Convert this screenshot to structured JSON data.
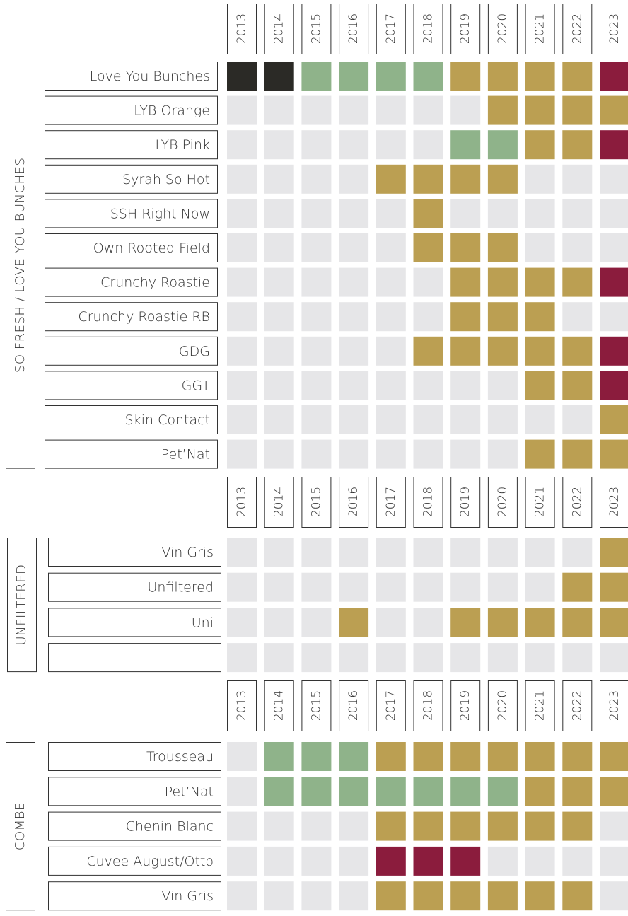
{
  "sections": [
    {
      "title": "SO FRESH / LOVE YOU BUNCHES",
      "years": [
        "2013",
        "2014",
        "2015",
        "2016",
        "2017",
        "2018",
        "2019",
        "2020",
        "2021",
        "2022",
        "2023"
      ],
      "rows": [
        {
          "label": "Love You Bunches",
          "cells": [
            "#2b2a26",
            "#2b2a26",
            "#8fb38a",
            "#8fb38a",
            "#8fb38a",
            "#8fb38a",
            "#bb9f52",
            "#bb9f52",
            "#bb9f52",
            "#bb9f52",
            "#8b1c3d"
          ]
        },
        {
          "label": "LYB Orange",
          "cells": [
            "#e6e6e8",
            "#e6e6e8",
            "#e6e6e8",
            "#e6e6e8",
            "#e6e6e8",
            "#e6e6e8",
            "#e6e6e8",
            "#bb9f52",
            "#bb9f52",
            "#bb9f52",
            "#bb9f52"
          ]
        },
        {
          "label": "LYB Pink",
          "cells": [
            "#e6e6e8",
            "#e6e6e8",
            "#e6e6e8",
            "#e6e6e8",
            "#e6e6e8",
            "#e6e6e8",
            "#8fb38a",
            "#8fb38a",
            "#bb9f52",
            "#bb9f52",
            "#8b1c3d"
          ]
        },
        {
          "label": "Syrah So Hot",
          "cells": [
            "#e6e6e8",
            "#e6e6e8",
            "#e6e6e8",
            "#e6e6e8",
            "#bb9f52",
            "#bb9f52",
            "#bb9f52",
            "#bb9f52",
            "#e6e6e8",
            "#e6e6e8",
            "#e6e6e8"
          ]
        },
        {
          "label": "SSH Right Now",
          "cells": [
            "#e6e6e8",
            "#e6e6e8",
            "#e6e6e8",
            "#e6e6e8",
            "#e6e6e8",
            "#bb9f52",
            "#e6e6e8",
            "#e6e6e8",
            "#e6e6e8",
            "#e6e6e8",
            "#e6e6e8"
          ]
        },
        {
          "label": "Own Rooted Field",
          "cells": [
            "#e6e6e8",
            "#e6e6e8",
            "#e6e6e8",
            "#e6e6e8",
            "#e6e6e8",
            "#bb9f52",
            "#bb9f52",
            "#bb9f52",
            "#e6e6e8",
            "#e6e6e8",
            "#e6e6e8"
          ]
        },
        {
          "label": "Crunchy Roastie",
          "cells": [
            "#e6e6e8",
            "#e6e6e8",
            "#e6e6e8",
            "#e6e6e8",
            "#e6e6e8",
            "#e6e6e8",
            "#bb9f52",
            "#bb9f52",
            "#bb9f52",
            "#bb9f52",
            "#8b1c3d"
          ]
        },
        {
          "label": "Crunchy Roastie RB",
          "cells": [
            "#e6e6e8",
            "#e6e6e8",
            "#e6e6e8",
            "#e6e6e8",
            "#e6e6e8",
            "#e6e6e8",
            "#bb9f52",
            "#bb9f52",
            "#bb9f52",
            "#e6e6e8",
            "#e6e6e8"
          ]
        },
        {
          "label": "GDG",
          "cells": [
            "#e6e6e8",
            "#e6e6e8",
            "#e6e6e8",
            "#e6e6e8",
            "#e6e6e8",
            "#bb9f52",
            "#bb9f52",
            "#bb9f52",
            "#bb9f52",
            "#bb9f52",
            "#8b1c3d"
          ]
        },
        {
          "label": "GGT",
          "cells": [
            "#e6e6e8",
            "#e6e6e8",
            "#e6e6e8",
            "#e6e6e8",
            "#e6e6e8",
            "#e6e6e8",
            "#e6e6e8",
            "#e6e6e8",
            "#bb9f52",
            "#bb9f52",
            "#8b1c3d"
          ]
        },
        {
          "label": "Skin Contact",
          "cells": [
            "#e6e6e8",
            "#e6e6e8",
            "#e6e6e8",
            "#e6e6e8",
            "#e6e6e8",
            "#e6e6e8",
            "#e6e6e8",
            "#e6e6e8",
            "#e6e6e8",
            "#e6e6e8",
            "#bb9f52"
          ]
        },
        {
          "label": "Pet’Nat",
          "cells": [
            "#e6e6e8",
            "#e6e6e8",
            "#e6e6e8",
            "#e6e6e8",
            "#e6e6e8",
            "#e6e6e8",
            "#e6e6e8",
            "#e6e6e8",
            "#bb9f52",
            "#bb9f52",
            "#bb9f52"
          ]
        }
      ]
    },
    {
      "title": "UNFILTERED",
      "years": [
        "2013",
        "2014",
        "2015",
        "2016",
        "2017",
        "2018",
        "2019",
        "2020",
        "2021",
        "2022",
        "2023"
      ],
      "rows": [
        {
          "label": "Vin Gris",
          "cells": [
            "#e6e6e8",
            "#e6e6e8",
            "#e6e6e8",
            "#e6e6e8",
            "#e6e6e8",
            "#e6e6e8",
            "#e6e6e8",
            "#e6e6e8",
            "#e6e6e8",
            "#e6e6e8",
            "#bb9f52"
          ]
        },
        {
          "label": "Unfiltered",
          "cells": [
            "#e6e6e8",
            "#e6e6e8",
            "#e6e6e8",
            "#e6e6e8",
            "#e6e6e8",
            "#e6e6e8",
            "#e6e6e8",
            "#e6e6e8",
            "#e6e6e8",
            "#bb9f52",
            "#bb9f52"
          ]
        },
        {
          "label": "Uni",
          "cells": [
            "#e6e6e8",
            "#e6e6e8",
            "#e6e6e8",
            "#bb9f52",
            "#e6e6e8",
            "#e6e6e8",
            "#bb9f52",
            "#bb9f52",
            "#bb9f52",
            "#bb9f52",
            "#bb9f52"
          ]
        },
        {
          "cells": [
            "#e6e6e8",
            "#e6e6e8",
            "#e6e6e8",
            "#e6e6e8",
            "#e6e6e8",
            "#e6e6e8",
            "#e6e6e8",
            "#e6e6e8",
            "#e6e6e8",
            "#e6e6e8",
            "#e6e6e8"
          ]
        }
      ]
    },
    {
      "title": "COMBE",
      "years": [
        "2013",
        "2014",
        "2015",
        "2016",
        "2017",
        "2018",
        "2019",
        "2020",
        "2021",
        "2022",
        "2023"
      ],
      "rows": [
        {
          "label": "Trousseau",
          "cells": [
            "#e6e6e8",
            "#8fb38a",
            "#8fb38a",
            "#8fb38a",
            "#bb9f52",
            "#bb9f52",
            "#bb9f52",
            "#bb9f52",
            "#bb9f52",
            "#bb9f52",
            "#bb9f52"
          ]
        },
        {
          "label": "Pet’Nat",
          "cells": [
            "#e6e6e8",
            "#8fb38a",
            "#8fb38a",
            "#8fb38a",
            "#8fb38a",
            "#8fb38a",
            "#8fb38a",
            "#8fb38a",
            "#bb9f52",
            "#bb9f52",
            "#bb9f52"
          ]
        },
        {
          "label": "Chenin Blanc",
          "cells": [
            "#e6e6e8",
            "#e6e6e8",
            "#e6e6e8",
            "#e6e6e8",
            "#bb9f52",
            "#bb9f52",
            "#bb9f52",
            "#bb9f52",
            "#bb9f52",
            "#bb9f52",
            "#e6e6e8"
          ]
        },
        {
          "label": "Cuvee August/Otto",
          "cells": [
            "#e6e6e8",
            "#e6e6e8",
            "#e6e6e8",
            "#e6e6e8",
            "#8b1c3d",
            "#8b1c3d",
            "#8b1c3d",
            "#e6e6e8",
            "#e6e6e8",
            "#e6e6e8",
            "#e6e6e8"
          ]
        },
        {
          "label": "Vin Gris",
          "cells": [
            "#e6e6e8",
            "#e6e6e8",
            "#e6e6e8",
            "#e6e6e8",
            "#bb9f52",
            "#bb9f52",
            "#bb9f52",
            "#bb9f52",
            "#bb9f52",
            "#bb9f52",
            "#e6e6e8"
          ]
        }
      ]
    }
  ]
}
